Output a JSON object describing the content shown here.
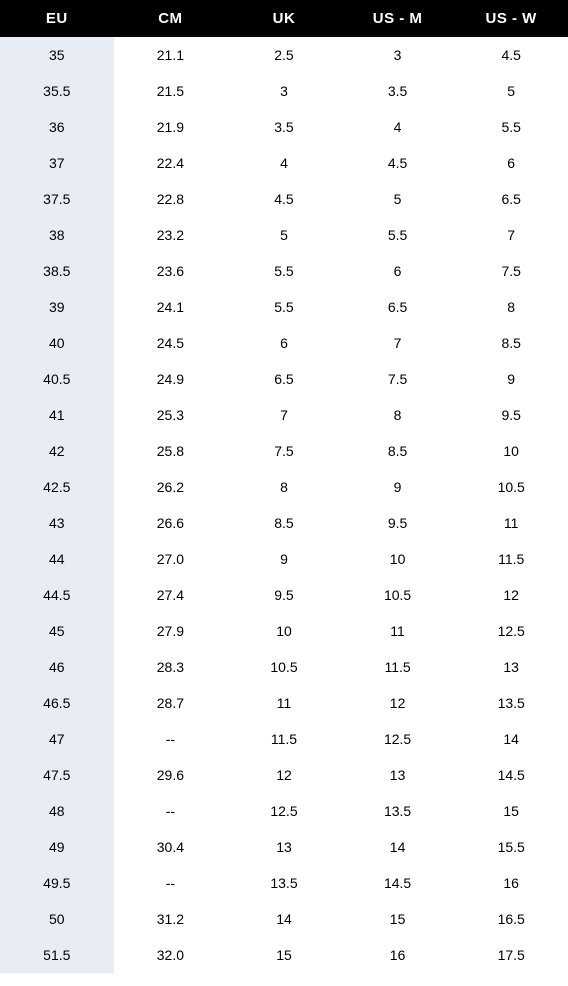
{
  "size_chart": {
    "type": "table",
    "background_color": "#ffffff",
    "header_bg": "#000000",
    "header_text_color": "#ffffff",
    "first_col_bg": "#e8edf5",
    "cell_text_color": "#000000",
    "header_fontsize": 15,
    "cell_fontsize": 14,
    "columns": [
      "EU",
      "CM",
      "UK",
      "US - M",
      "US - W"
    ],
    "rows": [
      [
        "35",
        "21.1",
        "2.5",
        "3",
        "4.5"
      ],
      [
        "35.5",
        "21.5",
        "3",
        "3.5",
        "5"
      ],
      [
        "36",
        "21.9",
        "3.5",
        "4",
        "5.5"
      ],
      [
        "37",
        "22.4",
        "4",
        "4.5",
        "6"
      ],
      [
        "37.5",
        "22.8",
        "4.5",
        "5",
        "6.5"
      ],
      [
        "38",
        "23.2",
        "5",
        "5.5",
        "7"
      ],
      [
        "38.5",
        "23.6",
        "5.5",
        "6",
        "7.5"
      ],
      [
        "39",
        "24.1",
        "5.5",
        "6.5",
        "8"
      ],
      [
        "40",
        "24.5",
        "6",
        "7",
        "8.5"
      ],
      [
        "40.5",
        "24.9",
        "6.5",
        "7.5",
        "9"
      ],
      [
        "41",
        "25.3",
        "7",
        "8",
        "9.5"
      ],
      [
        "42",
        "25.8",
        "7.5",
        "8.5",
        "10"
      ],
      [
        "42.5",
        "26.2",
        "8",
        "9",
        "10.5"
      ],
      [
        "43",
        "26.6",
        "8.5",
        "9.5",
        "11"
      ],
      [
        "44",
        "27.0",
        "9",
        "10",
        "11.5"
      ],
      [
        "44.5",
        "27.4",
        "9.5",
        "10.5",
        "12"
      ],
      [
        "45",
        "27.9",
        "10",
        "11",
        "12.5"
      ],
      [
        "46",
        "28.3",
        "10.5",
        "11.5",
        "13"
      ],
      [
        "46.5",
        "28.7",
        "11",
        "12",
        "13.5"
      ],
      [
        "47",
        "--",
        "11.5",
        "12.5",
        "14"
      ],
      [
        "47.5",
        "29.6",
        "12",
        "13",
        "14.5"
      ],
      [
        "48",
        "--",
        "12.5",
        "13.5",
        "15"
      ],
      [
        "49",
        "30.4",
        "13",
        "14",
        "15.5"
      ],
      [
        "49.5",
        "--",
        "13.5",
        "14.5",
        "16"
      ],
      [
        "50",
        "31.2",
        "14",
        "15",
        "16.5"
      ],
      [
        "51.5",
        "32.0",
        "15",
        "16",
        "17.5"
      ]
    ]
  }
}
